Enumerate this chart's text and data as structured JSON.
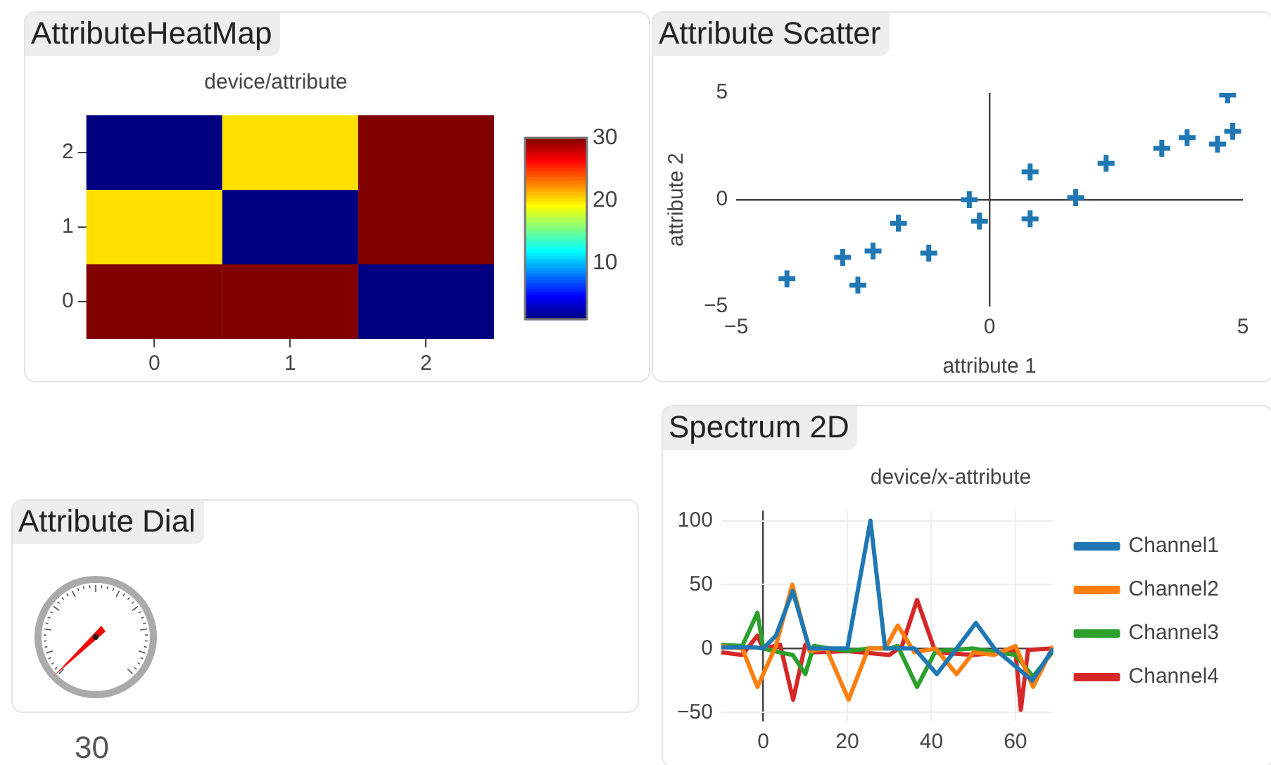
{
  "chart_data": [
    {
      "type": "heatmap",
      "title": "AttributeHeatMap",
      "subtitle": "device/attribute",
      "categories": [
        "0",
        "1",
        "2"
      ],
      "y_categories": [
        "2",
        "1",
        "0"
      ],
      "cells": [
        [
          1,
          20,
          30
        ],
        [
          20,
          1,
          30
        ],
        [
          30,
          30,
          1
        ]
      ],
      "clim": [
        1,
        30
      ],
      "cticks": [
        10,
        20,
        30
      ]
    },
    {
      "type": "scatter",
      "title": "Attribute Scatter",
      "xlabel": "attribute 1",
      "ylabel": "attribute 2",
      "marker": "cross",
      "xlim": [
        -5,
        5
      ],
      "ylim": [
        -5,
        5
      ],
      "xticks": [
        -5,
        0,
        5
      ],
      "yticks": [
        -5,
        0,
        5
      ],
      "series": [
        {
          "color": "#1f77b4",
          "x": [
            -4.0,
            -2.9,
            -2.6,
            -2.3,
            -1.8,
            -1.2,
            -0.4,
            -0.2,
            0.8,
            0.8,
            1.7,
            2.3,
            3.4,
            3.9,
            4.5,
            4.8,
            4.7
          ],
          "values": [
            -3.7,
            -2.7,
            -4.0,
            -2.4,
            -1.1,
            -2.5,
            0.0,
            -1.0,
            -0.9,
            1.3,
            0.1,
            1.7,
            2.4,
            2.9,
            2.6,
            3.2,
            4.9
          ]
        }
      ]
    },
    {
      "type": "other",
      "title": "Attribute Dial",
      "annotations": [
        "30"
      ]
    },
    {
      "type": "line",
      "title": "Spectrum 2D",
      "subtitle": "device/x-attribute",
      "xlim": [
        -10,
        69
      ],
      "ylim": [
        -57,
        108
      ],
      "xticks": [
        0,
        20,
        40,
        60
      ],
      "yticks": [
        -50,
        0,
        50,
        100
      ],
      "grid": true,
      "legend": "right",
      "series": [
        {
          "name": "Channel1",
          "color": "#1f77b4",
          "x": [
            -10,
            -2,
            0,
            3,
            7,
            11,
            20,
            25.5,
            29,
            36,
            41.3,
            46,
            50.6,
            55,
            64,
            69
          ],
          "values": [
            1,
            1,
            0,
            10,
            45,
            0,
            0,
            100,
            0,
            0,
            -20,
            0,
            20,
            0,
            -25,
            0
          ]
        },
        {
          "name": "Channel2",
          "color": "#ff7f0e",
          "x": [
            -10,
            -5,
            -1.4,
            3,
            6.9,
            11,
            15,
            20.3,
            25,
            29,
            32,
            36,
            41,
            46,
            50,
            55,
            60,
            64.2,
            69
          ],
          "values": [
            2,
            0,
            -30,
            2,
            50,
            -2,
            0,
            -40,
            0,
            0,
            18,
            -3,
            0,
            -20,
            -3,
            -5,
            2,
            -30,
            2
          ]
        },
        {
          "name": "Channel3",
          "color": "#2ca02c",
          "x": [
            -10,
            -5,
            -1.4,
            0,
            4,
            7,
            10,
            12,
            20,
            25,
            30,
            32,
            36.6,
            41,
            50,
            60,
            64.2,
            69
          ],
          "values": [
            3,
            2,
            28,
            0,
            -3,
            -5,
            -20,
            2,
            -2,
            0,
            0,
            2,
            -30,
            -2,
            0,
            -5,
            -22,
            -2
          ]
        },
        {
          "name": "Channel4",
          "color": "#d62728",
          "x": [
            -10,
            -5,
            -1.4,
            0,
            4,
            7.1,
            10,
            12,
            20,
            30,
            33,
            36.6,
            41,
            50,
            60,
            61.3,
            63,
            69
          ],
          "values": [
            -3,
            -5,
            10,
            0,
            3,
            -40,
            3,
            -3,
            -2,
            -5,
            2,
            38,
            -3,
            -5,
            -2,
            -48,
            -1,
            0
          ]
        }
      ]
    }
  ]
}
